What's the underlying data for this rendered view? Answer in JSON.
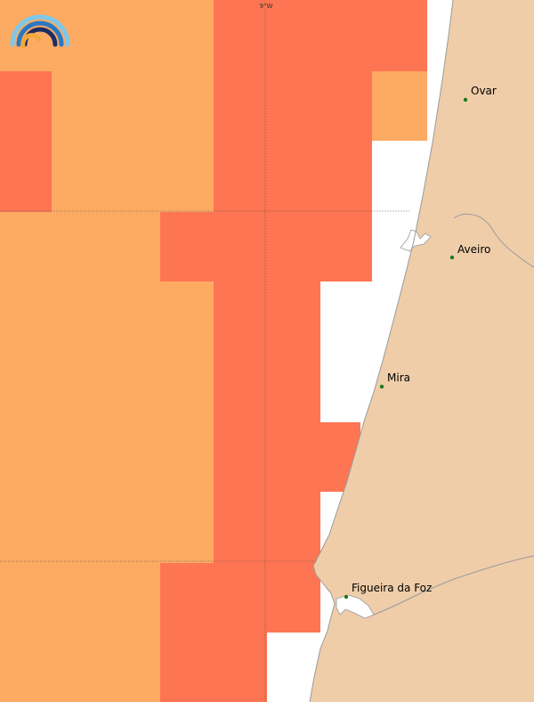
{
  "map": {
    "colors": {
      "sea": "#ffffff",
      "land": "#efcda9",
      "zone_light": "#fdaa63",
      "zone_dark": "#fe7553",
      "coastline": "#9a9a9a",
      "city_dot": "#1a7a1a",
      "gridline": "#555555"
    },
    "gridline_label": "9°W",
    "cities": [
      {
        "name": "Ovar"
      },
      {
        "name": "Aveiro"
      },
      {
        "name": "Mira"
      },
      {
        "name": "Figueira da Foz"
      }
    ]
  },
  "logo": {
    "name": "rainbow-logo",
    "colors": [
      "#7ec8e8",
      "#2a78c4",
      "#1e2d63",
      "#f2a93b"
    ]
  }
}
